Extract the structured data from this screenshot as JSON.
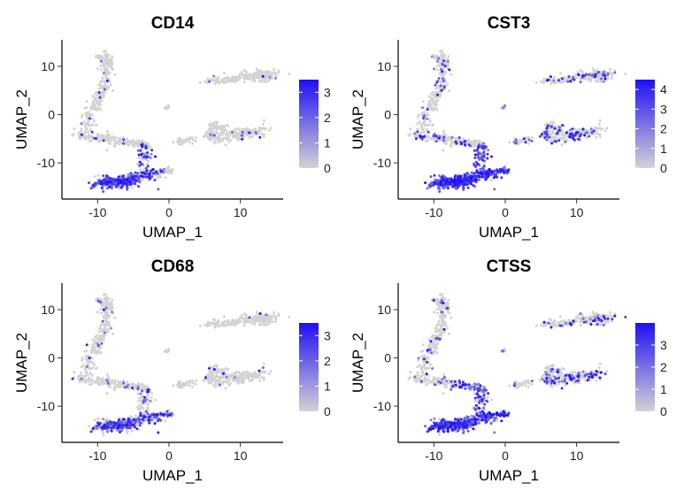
{
  "chart_data": [
    {
      "type": "scatter",
      "title": "CD14",
      "xlabel": "UMAP_1",
      "ylabel": "UMAP_2",
      "xlim": [
        -15,
        16
      ],
      "ylim": [
        -17.5,
        15.5
      ],
      "xticks": [
        -10,
        0,
        10
      ],
      "yticks": [
        -10,
        0,
        10
      ],
      "colorbar": {
        "min": 0,
        "max": 3.5,
        "ticks": [
          0,
          1,
          2,
          3
        ],
        "low_color": "#d3d3d3",
        "high_color": "#1f0ff5"
      },
      "expr": {
        "mono_main": 0.7,
        "mono_ext": 0.3,
        "dc": 0.4,
        "b_cells": 0.03,
        "t_cells": 0.04,
        "nk_cells": 0.05,
        "platelets": 0.0,
        "upper_band": 0.05
      }
    },
    {
      "type": "scatter",
      "title": "CST3",
      "xlabel": "UMAP_1",
      "ylabel": "UMAP_2",
      "xlim": [
        -15,
        16
      ],
      "ylim": [
        -17.5,
        15.5
      ],
      "xticks": [
        -10,
        0,
        10
      ],
      "yticks": [
        -10,
        0,
        10
      ],
      "colorbar": {
        "min": 0,
        "max": 4.5,
        "ticks": [
          0,
          1,
          2,
          3,
          4
        ],
        "low_color": "#d3d3d3",
        "high_color": "#1f0ff5"
      },
      "expr": {
        "mono_main": 0.95,
        "mono_ext": 0.9,
        "dc": 0.85,
        "b_cells": 0.2,
        "t_cells": 0.15,
        "nk_cells": 0.25,
        "platelets": 0.3,
        "upper_band": 0.15
      }
    },
    {
      "type": "scatter",
      "title": "CD68",
      "xlabel": "UMAP_1",
      "ylabel": "UMAP_2",
      "xlim": [
        -15,
        16
      ],
      "ylim": [
        -17.5,
        15.5
      ],
      "xticks": [
        -10,
        0,
        10
      ],
      "yticks": [
        -10,
        0,
        10
      ],
      "colorbar": {
        "min": 0,
        "max": 3.5,
        "ticks": [
          0,
          1,
          2,
          3
        ],
        "low_color": "#d3d3d3",
        "high_color": "#1f0ff5"
      },
      "expr": {
        "mono_main": 0.5,
        "mono_ext": 0.45,
        "dc": 0.3,
        "b_cells": 0.04,
        "t_cells": 0.05,
        "nk_cells": 0.06,
        "platelets": 0.05,
        "upper_band": 0.04
      }
    },
    {
      "type": "scatter",
      "title": "CTSS",
      "xlabel": "UMAP_1",
      "ylabel": "UMAP_2",
      "xlim": [
        -15,
        16
      ],
      "ylim": [
        -17.5,
        15.5
      ],
      "xticks": [
        -10,
        0,
        10
      ],
      "yticks": [
        -10,
        0,
        10
      ],
      "colorbar": {
        "min": 0,
        "max": 4,
        "ticks": [
          0,
          1,
          2,
          3
        ],
        "low_color": "#d3d3d3",
        "high_color": "#1f0ff5"
      },
      "expr": {
        "mono_main": 0.8,
        "mono_ext": 0.65,
        "dc": 0.55,
        "b_cells": 0.15,
        "t_cells": 0.12,
        "nk_cells": 0.3,
        "platelets": 0.1,
        "upper_band": 0.12
      }
    }
  ]
}
